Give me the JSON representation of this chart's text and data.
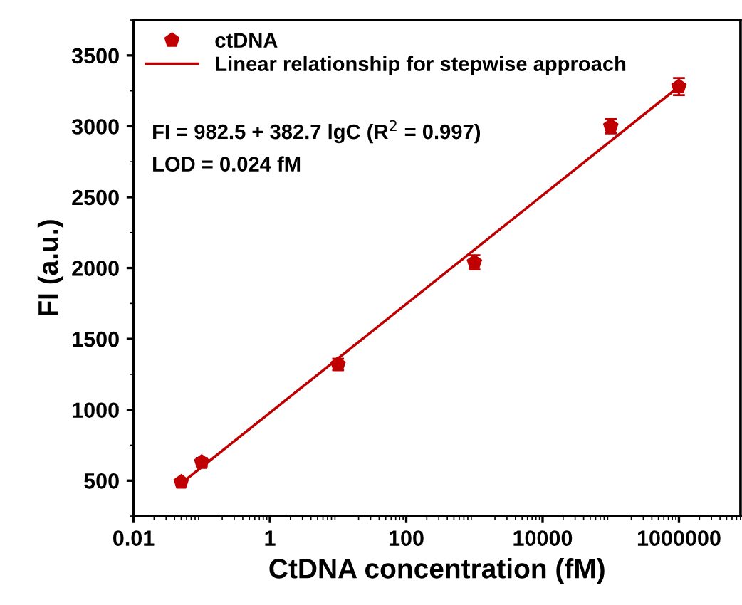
{
  "chart_data": {
    "type": "scatter",
    "xlabel": "CtDNA concentration (fM)",
    "ylabel": "FI (a.u.)",
    "x": [
      0.05,
      0.1,
      10,
      1000,
      100000,
      1000000
    ],
    "series": [
      {
        "name": "ctDNA",
        "color": "#c00000",
        "values": [
          490,
          630,
          1320,
          2040,
          3000,
          3280
        ],
        "errors": [
          20,
          30,
          40,
          50,
          50,
          60
        ]
      },
      {
        "name": "Linear relationship for stepwise approach",
        "type": "line",
        "color": "#c00000",
        "x": [
          0.05,
          1000000
        ],
        "values": [
          480,
          3280
        ],
        "line_style": "solid"
      }
    ],
    "annotations": [
      "FI = 982.5 + 382.7 lgC (R$^{2}$ = 0.997)",
      "LOD = 0.024 fM"
    ],
    "log": "x",
    "xlim": [
      0.01,
      8000000
    ],
    "xticks": [
      0.01,
      1,
      100,
      10000,
      1000000
    ],
    "ylim": [
      250,
      3750
    ],
    "yticks": [
      500,
      1000,
      1500,
      2000,
      2500,
      3000,
      3500
    ],
    "grid": false,
    "legend": "top left"
  }
}
